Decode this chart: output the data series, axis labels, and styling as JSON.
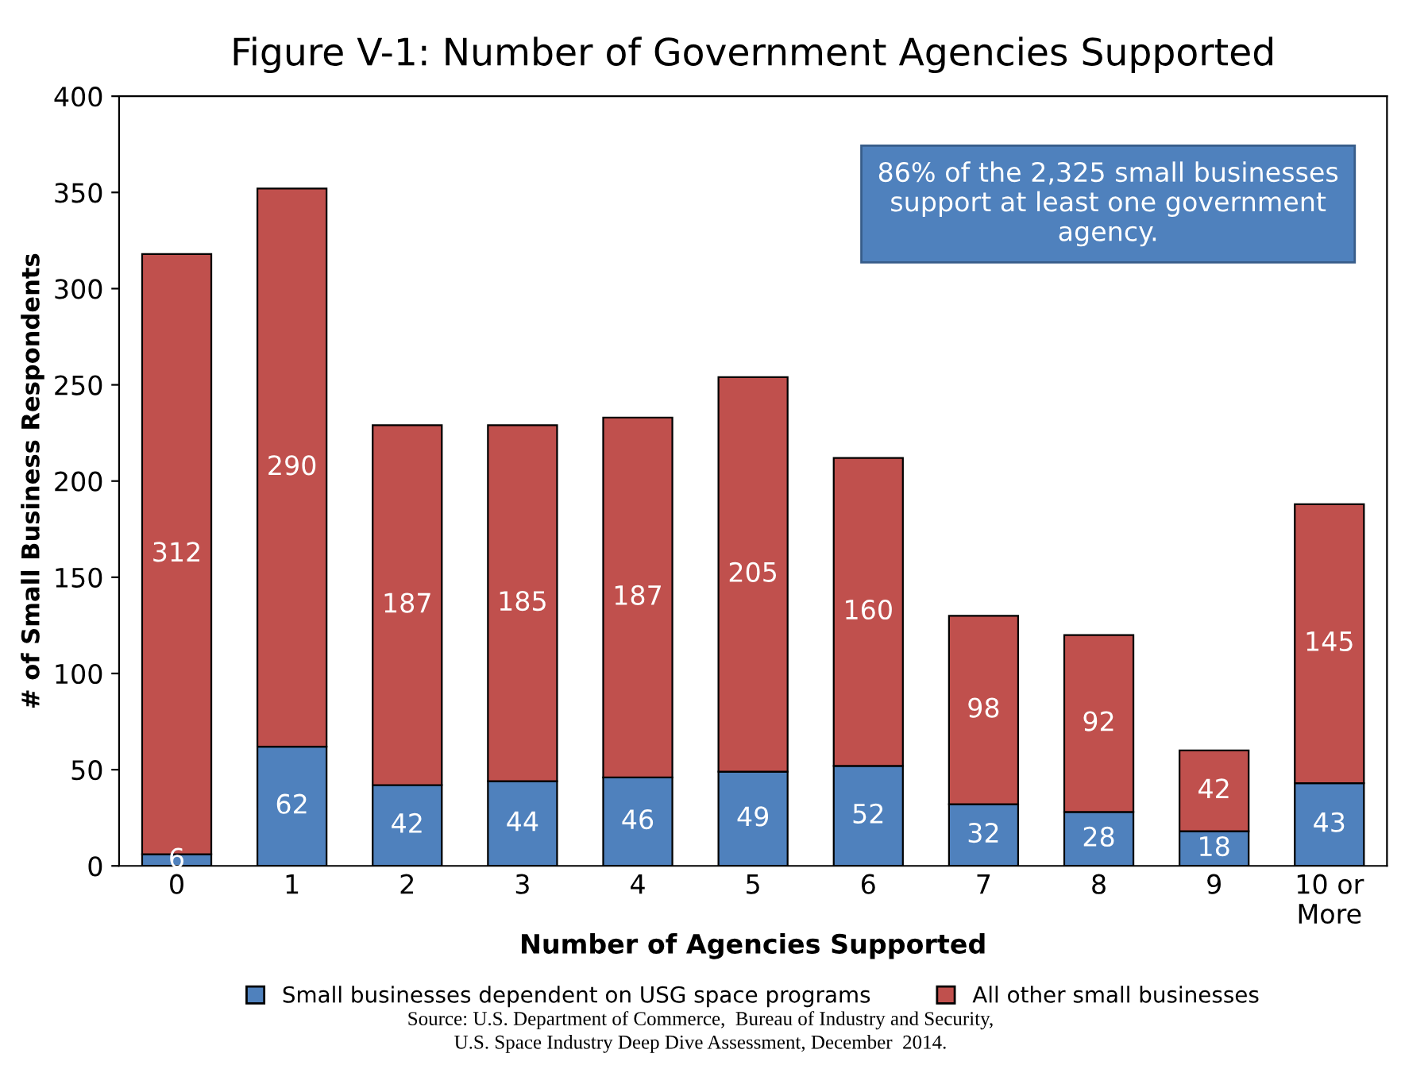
{
  "chart_data": {
    "type": "bar",
    "title": "Figure V-1: Number of Government Agencies Supported",
    "xlabel": "Number of Agencies Supported",
    "ylabel": "# of Small Business Respondents",
    "categories": [
      "0",
      "1",
      "2",
      "3",
      "4",
      "5",
      "6",
      "7",
      "8",
      "9",
      "10 or\nMore"
    ],
    "stacked": true,
    "series": [
      {
        "name": "Small businesses dependent on USG space programs",
        "color": "#4f81bd",
        "values": [
          6,
          62,
          42,
          44,
          46,
          49,
          52,
          32,
          28,
          18,
          43
        ]
      },
      {
        "name": "All other small businesses",
        "color": "#c0504d",
        "values": [
          312,
          290,
          187,
          185,
          187,
          205,
          160,
          98,
          92,
          42,
          145
        ]
      }
    ],
    "ylim": [
      0,
      400
    ],
    "yticks": [
      0,
      50,
      100,
      150,
      200,
      250,
      300,
      350,
      400
    ],
    "data_labels": true,
    "legend": "bottom",
    "annotations": [
      "86% of the 2,325 small businesses\nsupport at least one government\nagency.",
      "Source: U.S. Department of Commerce,  Bureau of Industry and Security,\nU.S. Space Industry Deep Dive Assessment, December  2014."
    ]
  }
}
